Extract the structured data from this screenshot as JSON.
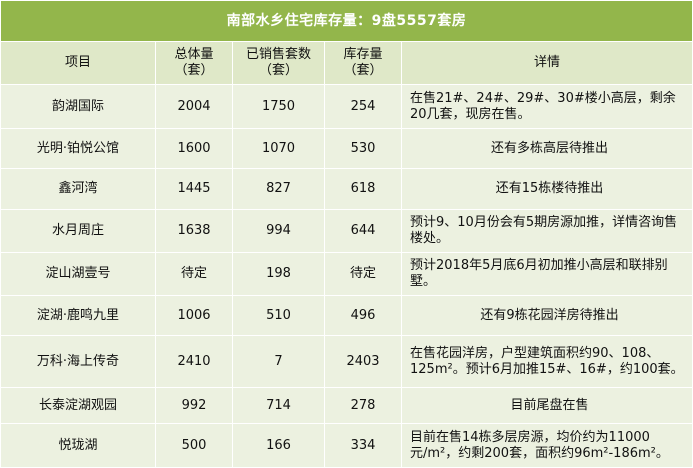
{
  "title": "南部水乡住宅库存量：9盘5557套房",
  "headers": {
    "project": "项目",
    "total_l1": "总体量",
    "total_l2": "（套）",
    "sold_l1": "已销售套数",
    "sold_l2": "（套）",
    "stock_l1": "库存量",
    "stock_l2": "（套）",
    "detail": "详情"
  },
  "rows": [
    {
      "project": "韵湖国际",
      "total": "2004",
      "sold": "1750",
      "stock": "254",
      "detail": "在售21#、24#、29#、30#楼小高层，剩余20几套，现房在售。"
    },
    {
      "project": "光明·铂悦公馆",
      "total": "1600",
      "sold": "1070",
      "stock": "530",
      "detail": "还有多栋高层待推出"
    },
    {
      "project": "鑫河湾",
      "total": "1445",
      "sold": "827",
      "stock": "618",
      "detail": "还有15栋楼待推出"
    },
    {
      "project": "水月周庄",
      "total": "1638",
      "sold": "994",
      "stock": "644",
      "detail": "预计9、10月份会有5期房源加推，详情咨询售楼处。"
    },
    {
      "project": "淀山湖壹号",
      "total": "待定",
      "sold": "198",
      "stock": "待定",
      "detail": "预计2018年5月底6月初加推小高层和联排别墅。"
    },
    {
      "project": "淀湖·鹿鸣九里",
      "total": "1006",
      "sold": "510",
      "stock": "496",
      "detail": "还有9栋花园洋房待推出"
    },
    {
      "project": "万科·海上传奇",
      "total": "2410",
      "sold": "7",
      "stock": "2403",
      "detail": "在售花园洋房，户型建筑面积约90、108、125m²。预计6月加推15#、16#，约100套。"
    },
    {
      "project": "长泰淀湖观园",
      "total": "992",
      "sold": "714",
      "stock": "278",
      "detail": "目前尾盘在售"
    },
    {
      "project": "悦珑湖",
      "total": "500",
      "sold": "166",
      "stock": "334",
      "detail": "目前在售14栋多层房源，均价约为11000元/m²，约剩200套，面积约96m²-186m²。"
    }
  ]
}
